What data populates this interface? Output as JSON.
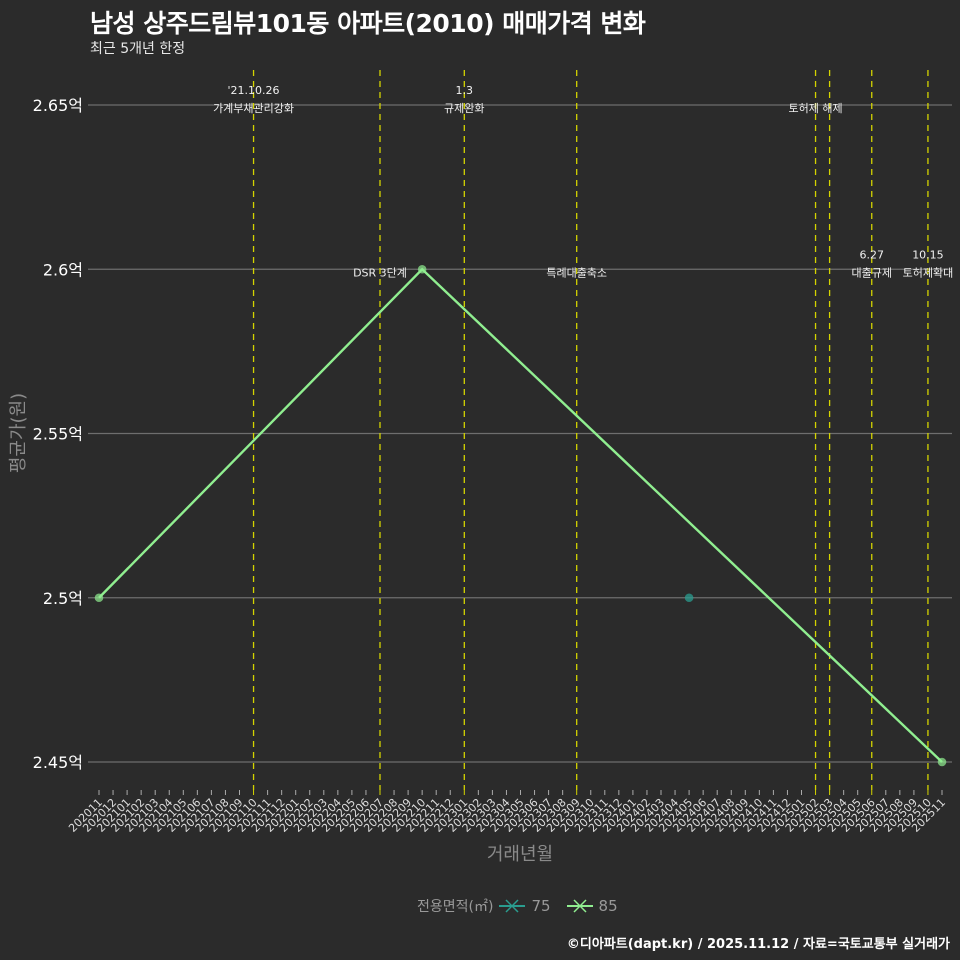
{
  "header": {
    "title": "남성 상주드림뷰101동 아파트(2010) 매매가격 변화",
    "subtitle": "최근 5개년 한정"
  },
  "footer": {
    "credit": "©디아파트(dapt.kr) / 2025.11.12 / 자료=국토교통부 실거래가"
  },
  "legend": {
    "title": "전용면적(㎡)",
    "items": [
      {
        "label": "75",
        "color": "#2a9d8f"
      },
      {
        "label": "85",
        "color": "#90ee90"
      }
    ]
  },
  "chart_data": {
    "type": "line",
    "title": "남성 상주드림뷰101동 아파트(2010) 매매가격 변화",
    "subtitle": "최근 5개년 한정",
    "xlabel": "거래년월",
    "ylabel": "평균가(원)",
    "ylim": [
      2.44,
      2.66
    ],
    "yticks": [
      "2.45억",
      "2.5억",
      "2.55억",
      "2.6억",
      "2.65억"
    ],
    "ytick_values": [
      2.45,
      2.5,
      2.55,
      2.6,
      2.65
    ],
    "categories": [
      "202011",
      "202012",
      "202101",
      "202102",
      "202103",
      "202104",
      "202105",
      "202106",
      "202107",
      "202108",
      "202109",
      "202110",
      "202111",
      "202112",
      "202201",
      "202202",
      "202203",
      "202204",
      "202205",
      "202206",
      "202207",
      "202208",
      "202209",
      "202210",
      "202211",
      "202212",
      "202301",
      "202302",
      "202303",
      "202304",
      "202305",
      "202306",
      "202307",
      "202308",
      "202309",
      "202310",
      "202311",
      "202312",
      "202401",
      "202402",
      "202403",
      "202404",
      "202405",
      "202406",
      "202407",
      "202408",
      "202409",
      "202410",
      "202411",
      "202412",
      "202501",
      "202502",
      "202503",
      "202504",
      "202505",
      "202506",
      "202507",
      "202508",
      "202509",
      "202510",
      "202511"
    ],
    "series": [
      {
        "name": "75",
        "color": "#2a9d8f",
        "points": [
          {
            "x": "202405",
            "y": 2.5
          }
        ]
      },
      {
        "name": "85",
        "color": "#90ee90",
        "points": [
          {
            "x": "202011",
            "y": 2.5
          },
          {
            "x": "202210",
            "y": 2.6
          },
          {
            "x": "202511",
            "y": 2.45
          }
        ]
      }
    ],
    "annotations": [
      {
        "x": "202110",
        "line1": "'21.10.26",
        "line2": "가계부채관리강화",
        "y": 2.65
      },
      {
        "x": "202207",
        "line1": "",
        "line2": "DSR 3단계",
        "y": 2.6
      },
      {
        "x": "202301",
        "line1": "1.3",
        "line2": "규제완화",
        "y": 2.65
      },
      {
        "x": "202309",
        "line1": "",
        "line2": "특례대출축소",
        "y": 2.6
      },
      {
        "x": "202502",
        "line1": "",
        "line2": "토허제 해제",
        "y": 2.65
      },
      {
        "x": "202503",
        "line1": "",
        "line2": "",
        "y": 2.65
      },
      {
        "x": "202506",
        "line1": "6.27",
        "line2": "대출규제",
        "y": 2.6
      },
      {
        "x": "202510",
        "line1": "10.15",
        "line2": "토허제확대",
        "y": 2.6
      }
    ],
    "grid": true,
    "legend_position": "bottom"
  }
}
